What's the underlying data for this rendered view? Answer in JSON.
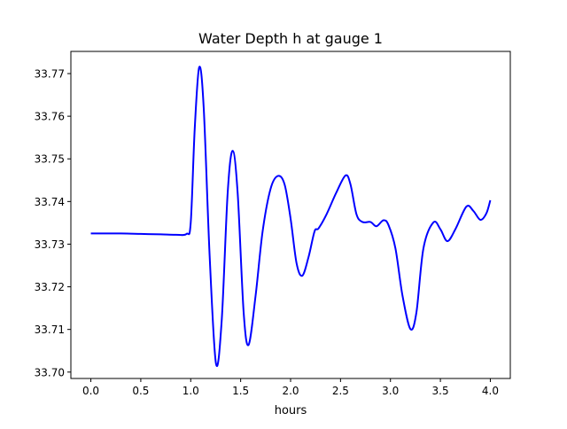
{
  "chart_data": {
    "type": "line",
    "title": "Water Depth h at gauge 1",
    "xlabel": "hours",
    "ylabel": "",
    "xlim": [
      -0.2,
      4.2
    ],
    "ylim": [
      33.6985,
      33.7752
    ],
    "grid": false,
    "xticks": [
      "0.0",
      "0.5",
      "1.0",
      "1.5",
      "2.0",
      "2.5",
      "3.0",
      "3.5",
      "4.0"
    ],
    "yticks": [
      "33.70",
      "33.71",
      "33.72",
      "33.73",
      "33.74",
      "33.75",
      "33.76",
      "33.77"
    ],
    "series": [
      {
        "name": "h",
        "color": "#0000ff",
        "x": [
          0.0,
          0.3,
          0.5,
          0.7,
          0.85,
          0.958,
          1.0,
          1.04,
          1.085,
          1.13,
          1.19,
          1.253,
          1.31,
          1.37,
          1.42,
          1.47,
          1.53,
          1.58,
          1.65,
          1.72,
          1.8,
          1.874,
          1.94,
          2.0,
          2.06,
          2.117,
          2.18,
          2.24,
          2.28,
          2.36,
          2.456,
          2.55,
          2.6,
          2.66,
          2.72,
          2.8,
          2.86,
          2.93,
          2.98,
          3.05,
          3.12,
          3.2,
          3.26,
          3.33,
          3.43,
          3.5,
          3.57,
          3.65,
          3.76,
          3.83,
          3.9,
          3.96,
          4.0
        ],
        "y": [
          33.7325,
          33.7325,
          33.7324,
          33.7323,
          33.7322,
          33.7324,
          33.735,
          33.757,
          33.7715,
          33.762,
          33.727,
          33.702,
          33.712,
          33.742,
          33.7519,
          33.742,
          33.714,
          33.7064,
          33.718,
          33.733,
          33.743,
          33.746,
          33.744,
          33.736,
          33.7255,
          33.7226,
          33.727,
          33.733,
          33.7337,
          33.737,
          33.742,
          33.7461,
          33.744,
          33.737,
          33.7352,
          33.7352,
          33.7342,
          33.7356,
          33.7345,
          33.729,
          33.718,
          33.7101,
          33.714,
          33.729,
          33.7351,
          33.7335,
          33.7307,
          33.7335,
          33.7388,
          33.7378,
          33.7357,
          33.7372,
          33.7403
        ]
      }
    ]
  }
}
